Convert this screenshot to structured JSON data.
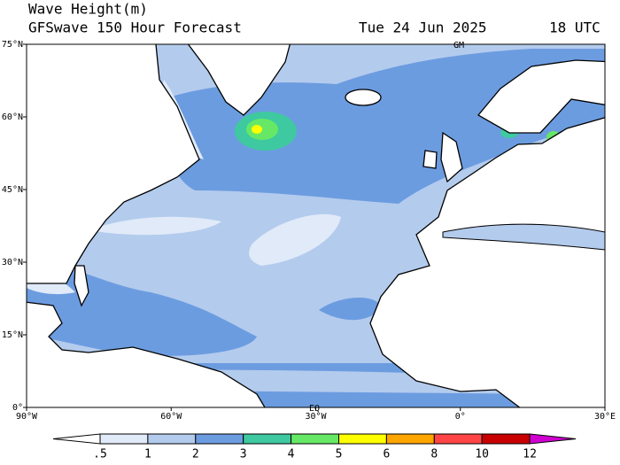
{
  "header": {
    "title": "Wave Height(m)",
    "subtitle": "GFSwave 150 Hour Forecast",
    "date": "Tue 24 Jun 2025",
    "time": "18 UTC"
  },
  "map": {
    "lon_range": [
      -90,
      30
    ],
    "lat_range": [
      0,
      75
    ],
    "lat_ticks": [
      {
        "value": 75,
        "label": "75°N"
      },
      {
        "value": 60,
        "label": "60°N"
      },
      {
        "value": 45,
        "label": "45°N"
      },
      {
        "value": 30,
        "label": "30°N"
      },
      {
        "value": 15,
        "label": "15°N"
      },
      {
        "value": 0,
        "label": "0°"
      }
    ],
    "lon_ticks": [
      {
        "value": -90,
        "label": "90°W"
      },
      {
        "value": -60,
        "label": "60°W"
      },
      {
        "value": -30,
        "label": "30°W"
      },
      {
        "value": 0,
        "label": "0°"
      },
      {
        "value": 30,
        "label": "30°E"
      }
    ],
    "gm_label": "GM",
    "eq_label": "EQ"
  },
  "colorbar": {
    "levels": [
      {
        "value": 0.5,
        "label": ".5"
      },
      1,
      2,
      3,
      4,
      5,
      6,
      8,
      10,
      12
    ],
    "colors": [
      "#ffffff",
      "#e0eaf8",
      "#b3cbed",
      "#6c9ce0",
      "#3ec9a0",
      "#66e866",
      "#ffff00",
      "#ffa500",
      "#ff4545",
      "#c80000",
      "#d000d0"
    ]
  }
}
